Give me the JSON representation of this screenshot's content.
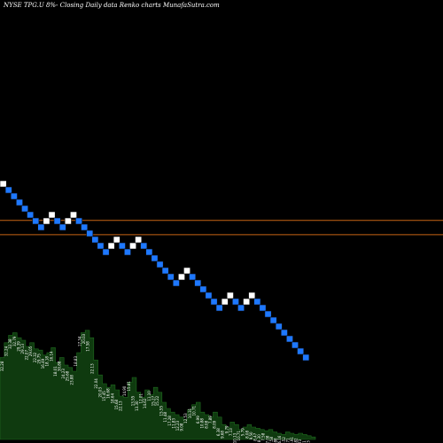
{
  "title": "NYSE TPG.U 8%-  Closing Daily data  Renko  charts MunafaSutra.com",
  "colors": {
    "background": "#000000",
    "up_brick": "#ffffff",
    "down_brick": "#1e78ff",
    "brick_border": "#0a0a0a",
    "reference_line": "#c86414",
    "volume_fill": "#0f3a0f",
    "volume_edge": "#1f6a1f",
    "text": "#ffffff"
  },
  "chart_data": {
    "type": "renko",
    "title": "NYSE TPG.U 8%-  Closing Daily data  Renko  charts MunafaSutra.com",
    "bricks": [
      "up",
      "down",
      "down",
      "down",
      "down",
      "down",
      "down",
      "down",
      "up",
      "up",
      "down",
      "down",
      "up",
      "up",
      "down",
      "down",
      "down",
      "down",
      "down",
      "down",
      "up",
      "up",
      "down",
      "down",
      "up",
      "up",
      "down",
      "down",
      "down",
      "down",
      "down",
      "down",
      "down",
      "up",
      "up",
      "down",
      "down",
      "down",
      "down",
      "down",
      "down",
      "up",
      "up",
      "down",
      "down",
      "up",
      "up",
      "down",
      "down",
      "down",
      "down",
      "down",
      "down",
      "down",
      "down",
      "down",
      "down"
    ],
    "reference_levels": [
      12,
      14
    ],
    "volume_labels": [
      "32.28",
      "32.24",
      "32.38",
      "32.79",
      "29.39",
      "29.13",
      "22.07",
      "29.05",
      "22.32",
      "29.75",
      "16.49",
      "18.18",
      "16.14",
      "18.01",
      "30.88",
      "24.23",
      "25.68",
      "23.88",
      "18.83",
      "17.34",
      "20.03",
      "17.58",
      "22.13",
      "22.04",
      "20.03",
      "15.45",
      "16.68",
      "18.64",
      "15.68",
      "22.13",
      "14.90",
      "15.81",
      "13.55",
      "13.30",
      "12.01",
      "14.62",
      "11.10",
      "15.27",
      "15.22",
      "15.55",
      "11.48",
      "17.28",
      "11.83",
      "12.23",
      "9.08",
      "12.53",
      "10.31",
      "10.71",
      "6.99",
      "10.88",
      "8.08",
      "7.89",
      "8.09",
      "6.38",
      "9.68",
      "9.79",
      "7.13",
      "10.13",
      "10.71",
      "5.79",
      "8.08",
      "9.50",
      "8.47",
      "8.30",
      "7.58",
      "7.08",
      "7.58",
      "7.88",
      "6.16",
      "3.52",
      "3.71",
      "6.91",
      "7.82",
      "3.73",
      "6.11",
      "1.23"
    ],
    "volume_profile": [
      0.66,
      0.78,
      0.84,
      0.86,
      0.82,
      0.8,
      0.75,
      0.78,
      0.73,
      0.72,
      0.68,
      0.7,
      0.74,
      0.62,
      0.66,
      0.6,
      0.58,
      0.55,
      0.7,
      0.86,
      0.88,
      0.82,
      0.64,
      0.52,
      0.45,
      0.42,
      0.44,
      0.4,
      0.35,
      0.34,
      0.46,
      0.5,
      0.38,
      0.34,
      0.4,
      0.36,
      0.42,
      0.38,
      0.3,
      0.25,
      0.22,
      0.2,
      0.18,
      0.16,
      0.24,
      0.28,
      0.3,
      0.22,
      0.2,
      0.18,
      0.22,
      0.18,
      0.12,
      0.1,
      0.14,
      0.12,
      0.08,
      0.1,
      0.12,
      0.1,
      0.09,
      0.08,
      0.07,
      0.08,
      0.06,
      0.05,
      0.04,
      0.06,
      0.05,
      0.04,
      0.05,
      0.04,
      0.03,
      0.02,
      0.02
    ]
  }
}
